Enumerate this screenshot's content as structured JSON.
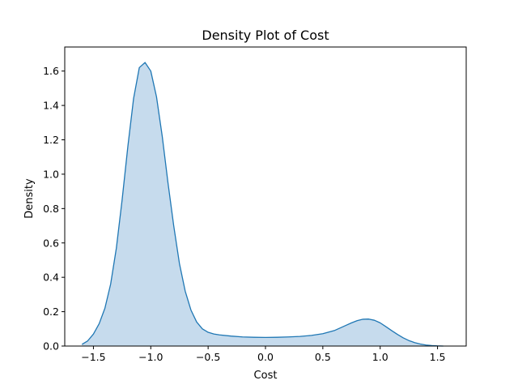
{
  "chart_data": {
    "type": "area",
    "title": "Density Plot of Cost",
    "xlabel": "Cost",
    "ylabel": "Density",
    "xlim": [
      -1.75,
      1.75
    ],
    "ylim": [
      0,
      1.74
    ],
    "x_ticks": [
      -1.5,
      -1.0,
      -0.5,
      0.0,
      0.5,
      1.0,
      1.5
    ],
    "x_tick_labels": [
      "−1.5",
      "−1.0",
      "−0.5",
      "0.0",
      "0.5",
      "1.0",
      "1.5"
    ],
    "y_ticks": [
      0.0,
      0.2,
      0.4,
      0.6,
      0.8,
      1.0,
      1.2,
      1.4,
      1.6
    ],
    "y_tick_labels": [
      "0.0",
      "0.2",
      "0.4",
      "0.6",
      "0.8",
      "1.0",
      "1.2",
      "1.4",
      "1.6"
    ],
    "grid": false,
    "colors": {
      "line": "#1f77b4",
      "fill": "#c6dbed"
    },
    "series": [
      {
        "x": [
          -1.6,
          -1.55,
          -1.5,
          -1.45,
          -1.4,
          -1.35,
          -1.3,
          -1.25,
          -1.2,
          -1.15,
          -1.1,
          -1.05,
          -1.0,
          -0.95,
          -0.9,
          -0.85,
          -0.8,
          -0.75,
          -0.7,
          -0.65,
          -0.6,
          -0.55,
          -0.5,
          -0.45,
          -0.4,
          -0.3,
          -0.2,
          -0.1,
          0.0,
          0.1,
          0.2,
          0.3,
          0.4,
          0.5,
          0.6,
          0.7,
          0.75,
          0.8,
          0.85,
          0.9,
          0.95,
          1.0,
          1.05,
          1.1,
          1.15,
          1.2,
          1.25,
          1.3,
          1.35,
          1.4,
          1.45,
          1.5,
          1.55
        ],
        "values": [
          0.01,
          0.03,
          0.07,
          0.13,
          0.22,
          0.36,
          0.57,
          0.85,
          1.16,
          1.44,
          1.62,
          1.65,
          1.6,
          1.45,
          1.22,
          0.95,
          0.7,
          0.48,
          0.32,
          0.21,
          0.14,
          0.1,
          0.08,
          0.07,
          0.065,
          0.058,
          0.053,
          0.051,
          0.05,
          0.051,
          0.053,
          0.056,
          0.062,
          0.072,
          0.09,
          0.12,
          0.135,
          0.148,
          0.156,
          0.157,
          0.15,
          0.135,
          0.113,
          0.09,
          0.068,
          0.048,
          0.032,
          0.02,
          0.012,
          0.006,
          0.003,
          0.001,
          0.0
        ]
      }
    ]
  }
}
